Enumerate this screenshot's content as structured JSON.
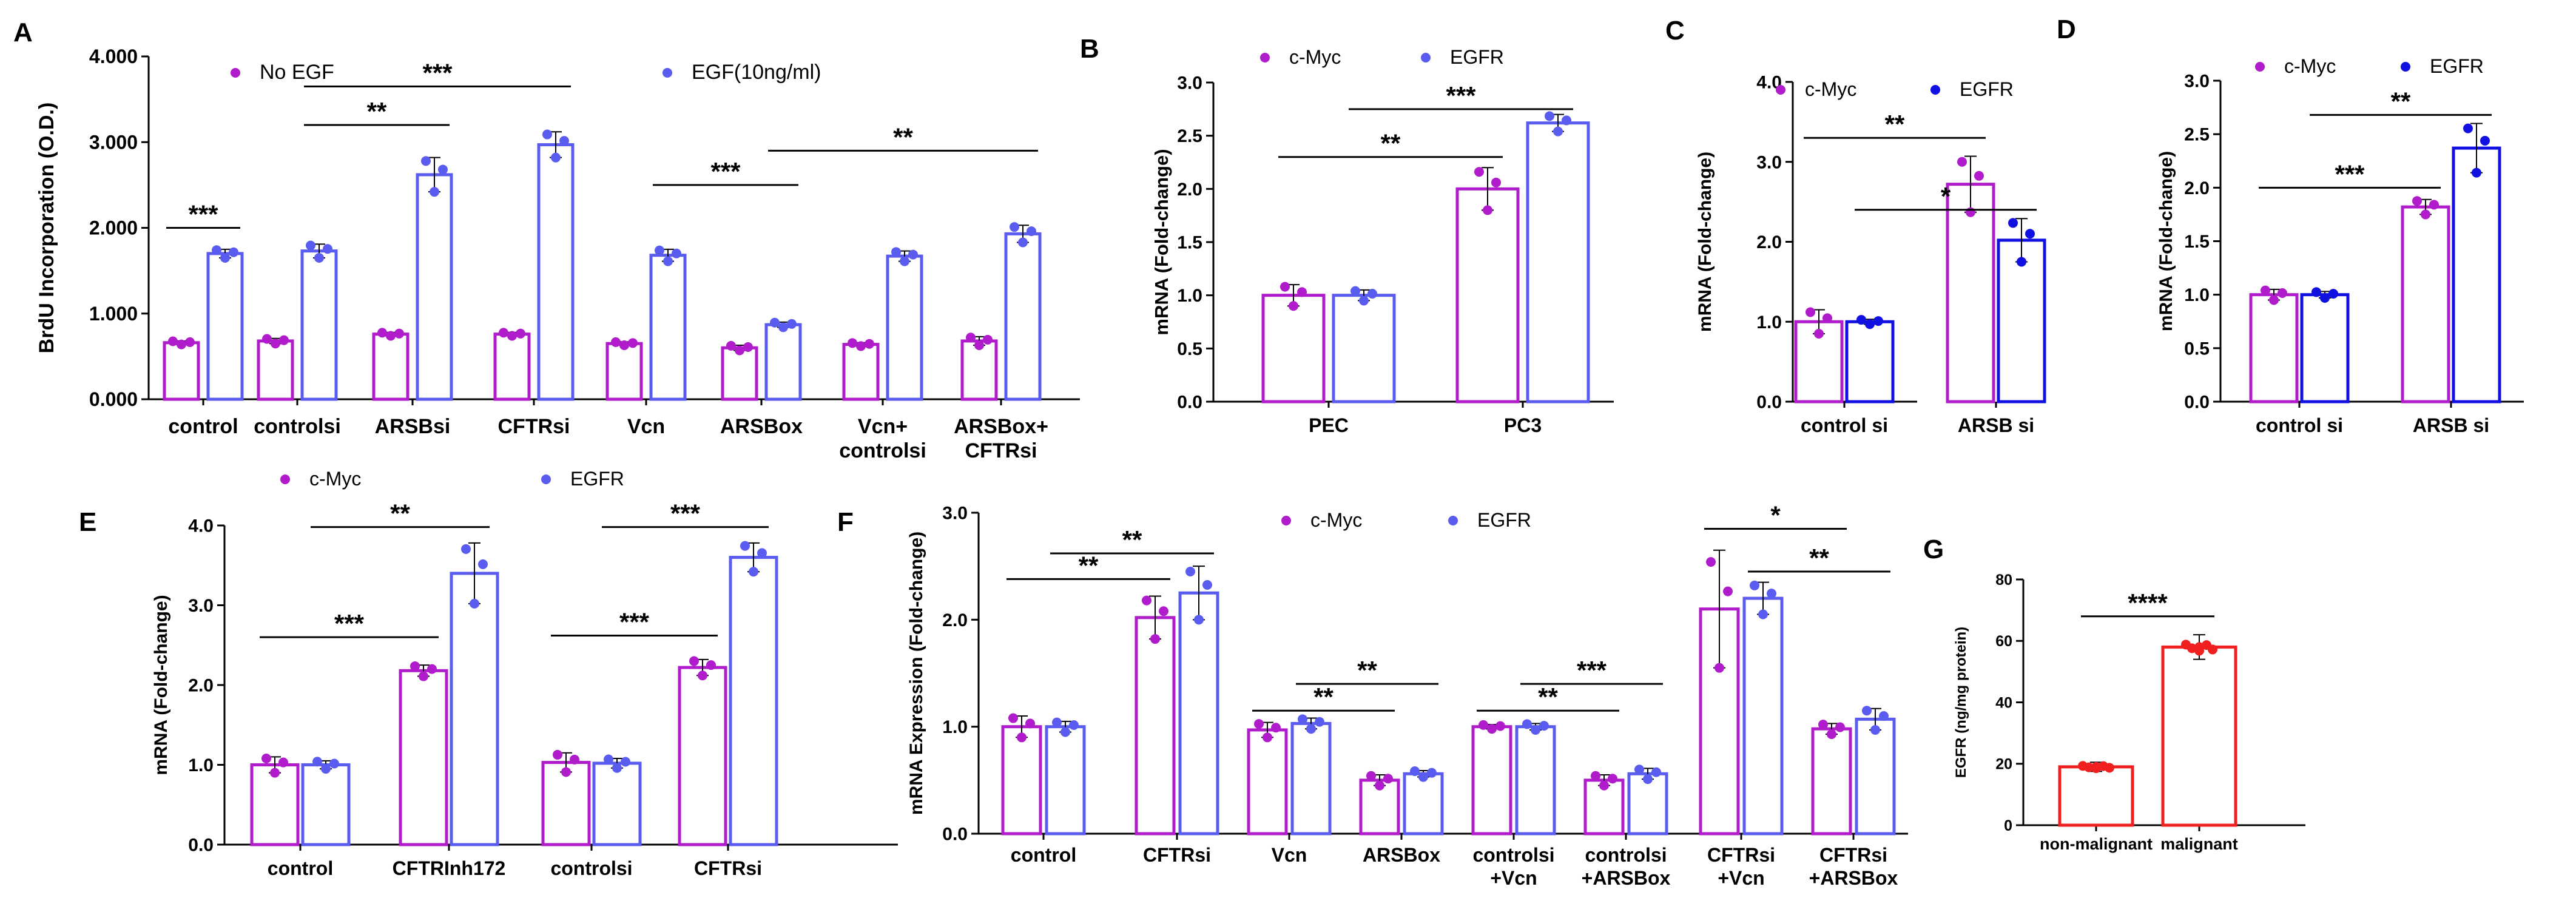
{
  "colors": {
    "purple": "#B01CCB",
    "blue": "#5A5CF0",
    "darkblue": "#1010E0",
    "red": "#F02020",
    "axis": "#000000",
    "point": "#000000"
  },
  "chart_data": [
    {
      "id": "A",
      "type": "bar",
      "panel_label": "A",
      "ylabel": "BrdU Incorporation (O.D.)",
      "ylim": [
        0,
        4
      ],
      "yticks": [
        "0.000",
        "1.000",
        "2.000",
        "3.000",
        "4.000"
      ],
      "categories": [
        [
          "control"
        ],
        [
          "controlsi"
        ],
        [
          "ARSBsi"
        ],
        [
          "CFTRsi"
        ],
        [
          "Vcn"
        ],
        [
          "ARSBox"
        ],
        [
          "Vcn+",
          "controlsi"
        ],
        [
          "ARSBox+",
          "CFTRsi"
        ]
      ],
      "series": [
        {
          "name": "No EGF",
          "color": "purple",
          "values": [
            0.66,
            0.68,
            0.76,
            0.76,
            0.65,
            0.6,
            0.64,
            0.68
          ],
          "errors": [
            0.02,
            0.03,
            0.02,
            0.02,
            0.02,
            0.03,
            0.02,
            0.05
          ]
        },
        {
          "name": "EGF(10ng/ml)",
          "color": "blue",
          "values": [
            1.7,
            1.73,
            2.62,
            2.97,
            1.68,
            0.87,
            1.67,
            1.93
          ],
          "errors": [
            0.05,
            0.08,
            0.2,
            0.15,
            0.07,
            0.03,
            0.06,
            0.1
          ]
        }
      ],
      "sig": [
        {
          "label": "***",
          "from": [
            0,
            0
          ],
          "to": [
            0,
            1
          ],
          "y": 2.0
        },
        {
          "label": "**",
          "from": [
            1,
            1
          ],
          "to": [
            2,
            1
          ],
          "y": 3.2
        },
        {
          "label": "***",
          "from": [
            1,
            1
          ],
          "to": [
            3,
            1
          ],
          "y": 3.65
        },
        {
          "label": "***",
          "from": [
            4,
            1
          ],
          "to": [
            5,
            1
          ],
          "y": 2.5
        },
        {
          "label": "**",
          "from": [
            5,
            1
          ],
          "to": [
            7,
            1
          ],
          "y": 2.9
        }
      ]
    },
    {
      "id": "B",
      "type": "bar",
      "panel_label": "B",
      "ylabel": "mRNA (Fold-change)",
      "ylim": [
        0,
        3
      ],
      "yticks": [
        "0.0",
        "0.5",
        "1.0",
        "1.5",
        "2.0",
        "2.5",
        "3.0"
      ],
      "categories": [
        [
          "PEC"
        ],
        [
          "PC3"
        ]
      ],
      "series": [
        {
          "name": "c-Myc",
          "color": "purple",
          "values": [
            1.0,
            2.0
          ],
          "errors": [
            0.1,
            0.2
          ]
        },
        {
          "name": "EGFR",
          "color": "blue",
          "values": [
            1.0,
            2.62
          ],
          "errors": [
            0.05,
            0.08
          ]
        }
      ],
      "sig": [
        {
          "label": "**",
          "from": [
            0,
            0
          ],
          "to": [
            1,
            0
          ],
          "y": 2.3
        },
        {
          "label": "***",
          "from": [
            0,
            1
          ],
          "to": [
            1,
            1
          ],
          "y": 2.75
        }
      ]
    },
    {
      "id": "C",
      "type": "bar",
      "panel_label": "C",
      "ylabel": "mRNA (Fold-change)",
      "ylim": [
        0,
        4
      ],
      "yticks": [
        "0.0",
        "1.0",
        "2.0",
        "3.0",
        "4.0"
      ],
      "categories": [
        [
          "control si"
        ],
        [
          "ARSB si"
        ]
      ],
      "series": [
        {
          "name": "c-Myc",
          "color": "purple",
          "values": [
            1.0,
            2.72
          ],
          "errors": [
            0.15,
            0.35
          ]
        },
        {
          "name": "EGFR",
          "color": "darkblue",
          "values": [
            1.0,
            2.02
          ],
          "errors": [
            0.03,
            0.27
          ]
        }
      ],
      "sig": [
        {
          "label": "**",
          "from": [
            0,
            0
          ],
          "to": [
            1,
            0
          ],
          "y": 3.3
        },
        {
          "label": "*",
          "from": [
            0,
            1
          ],
          "to": [
            1,
            1
          ],
          "y": 2.4
        }
      ]
    },
    {
      "id": "D",
      "type": "bar",
      "panel_label": "D",
      "ylabel": "mRNA (Fold-change)",
      "ylim": [
        0,
        3
      ],
      "yticks": [
        "0.0",
        "0.5",
        "1.0",
        "1.5",
        "2.0",
        "2.5",
        "3.0"
      ],
      "categories": [
        [
          "control si"
        ],
        [
          "ARSB si"
        ]
      ],
      "series": [
        {
          "name": "c-Myc",
          "color": "purple",
          "values": [
            1.0,
            1.82
          ],
          "errors": [
            0.05,
            0.07
          ]
        },
        {
          "name": "EGFR",
          "color": "darkblue",
          "values": [
            1.0,
            2.37
          ],
          "errors": [
            0.03,
            0.23
          ]
        }
      ],
      "sig": [
        {
          "label": "***",
          "from": [
            0,
            0
          ],
          "to": [
            1,
            0
          ],
          "y": 2.0
        },
        {
          "label": "**",
          "from": [
            0,
            1
          ],
          "to": [
            1,
            1
          ],
          "y": 2.68
        }
      ]
    },
    {
      "id": "E",
      "type": "bar",
      "panel_label": "E",
      "ylabel": "mRNA (Fold-change)",
      "ylim": [
        0,
        4
      ],
      "yticks": [
        "0.0",
        "1.0",
        "2.0",
        "3.0",
        "4.0"
      ],
      "categories": [
        [
          "control"
        ],
        [
          "CFTRInh172"
        ],
        [
          "controlsi"
        ],
        [
          "CFTRsi"
        ]
      ],
      "series": [
        {
          "name": "c-Myc",
          "color": "purple",
          "values": [
            1.0,
            2.18,
            1.03,
            2.22
          ],
          "errors": [
            0.1,
            0.07,
            0.12,
            0.1
          ]
        },
        {
          "name": "EGFR",
          "color": "blue",
          "values": [
            1.0,
            3.4,
            1.02,
            3.6
          ],
          "errors": [
            0.05,
            0.38,
            0.06,
            0.18
          ]
        }
      ],
      "sig": [
        {
          "label": "***",
          "from": [
            0,
            0
          ],
          "to": [
            1,
            0
          ],
          "y": 2.6
        },
        {
          "label": "**",
          "from": [
            0,
            1
          ],
          "to": [
            1,
            1
          ],
          "y": 3.98
        },
        {
          "label": "***",
          "from": [
            2,
            0
          ],
          "to": [
            3,
            0
          ],
          "y": 2.62
        },
        {
          "label": "***",
          "from": [
            2,
            1
          ],
          "to": [
            3,
            1
          ],
          "y": 3.98
        }
      ]
    },
    {
      "id": "F",
      "type": "bar",
      "panel_label": "F",
      "ylabel": "mRNA Expression (Fold-change)",
      "ylim": [
        0,
        3
      ],
      "yticks": [
        "0.0",
        "1.0",
        "2.0",
        "3.0"
      ],
      "categories": [
        [
          "control"
        ],
        [
          "CFTRsi"
        ],
        [
          "Vcn"
        ],
        [
          "ARSBox"
        ],
        [
          "controlsi",
          "+Vcn"
        ],
        [
          "controlsi",
          "+ARSBox"
        ],
        [
          "CFTRsi",
          "+Vcn"
        ],
        [
          "CFTRsi",
          "+ARSBox"
        ]
      ],
      "series": [
        {
          "name": "c-Myc",
          "color": "purple",
          "values": [
            1.0,
            2.02,
            0.97,
            0.5,
            1.0,
            0.5,
            2.1,
            0.98
          ],
          "errors": [
            0.1,
            0.2,
            0.07,
            0.05,
            0.02,
            0.05,
            0.55,
            0.05
          ]
        },
        {
          "name": "EGFR",
          "color": "blue",
          "values": [
            1.0,
            2.25,
            1.03,
            0.56,
            1.0,
            0.56,
            2.2,
            1.07
          ],
          "errors": [
            0.05,
            0.25,
            0.05,
            0.03,
            0.03,
            0.05,
            0.15,
            0.1
          ]
        }
      ],
      "sig": [
        {
          "label": "**",
          "from": [
            0,
            0
          ],
          "to": [
            1,
            0
          ],
          "y": 2.38
        },
        {
          "label": "**",
          "from": [
            0,
            1
          ],
          "to": [
            1,
            1
          ],
          "y": 2.62
        },
        {
          "label": "**",
          "from": [
            2,
            0
          ],
          "to": [
            3,
            0
          ],
          "y": 1.15
        },
        {
          "label": "**",
          "from": [
            2,
            1
          ],
          "to": [
            3,
            1
          ],
          "y": 1.4
        },
        {
          "label": "**",
          "from": [
            4,
            0
          ],
          "to": [
            5,
            0
          ],
          "y": 1.15
        },
        {
          "label": "***",
          "from": [
            4,
            1
          ],
          "to": [
            5,
            1
          ],
          "y": 1.4
        },
        {
          "label": "*",
          "from": [
            6,
            0
          ],
          "to": [
            7,
            0
          ],
          "y": 2.85
        },
        {
          "label": "**",
          "from": [
            6,
            1
          ],
          "to": [
            7,
            1
          ],
          "y": 2.45
        }
      ]
    },
    {
      "id": "G",
      "type": "bar",
      "panel_label": "G",
      "ylabel": "EGFR (ng/mg protein)",
      "ylim": [
        0,
        80
      ],
      "yticks": [
        "0",
        "20",
        "40",
        "60",
        "80"
      ],
      "categories": [
        [
          "non-malignant"
        ],
        [
          "malignant"
        ]
      ],
      "series": [
        {
          "name": "",
          "color": "red",
          "values": [
            19,
            58
          ],
          "errors": [
            1.5,
            4
          ]
        }
      ],
      "sig": [
        {
          "label": "****",
          "from": [
            0,
            0
          ],
          "to": [
            1,
            0
          ],
          "y": 68
        }
      ]
    }
  ]
}
